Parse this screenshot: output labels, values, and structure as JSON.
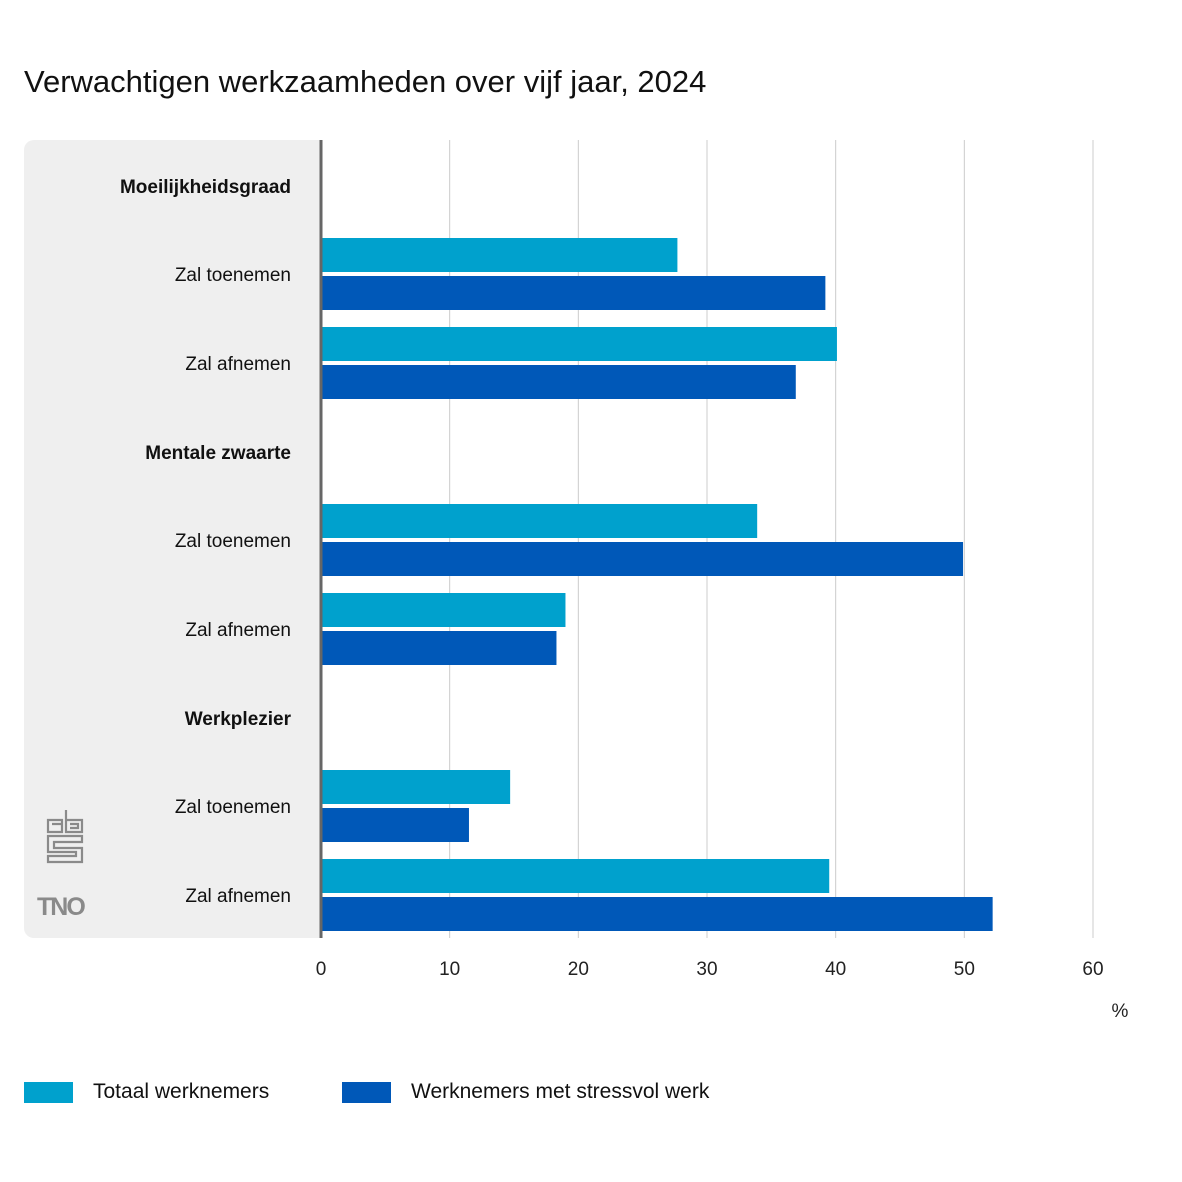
{
  "chart_data": {
    "type": "bar",
    "orientation": "horizontal",
    "title": "Verwachtigen werkzaamheden over vijf jaar, 2024",
    "xlabel": "%",
    "xlim": [
      0,
      60
    ],
    "xticks": [
      "0",
      "10",
      "20",
      "30",
      "40",
      "50",
      "60"
    ],
    "grid": true,
    "legend_position": "bottom-left",
    "groups": [
      {
        "label": "Moeilijkheidsgraad",
        "categories": [
          "Zal toenemen",
          "Zal afnemen"
        ]
      },
      {
        "label": "Mentale zwaarte",
        "categories": [
          "Zal toenemen",
          "Zal afnemen"
        ]
      },
      {
        "label": "Werkplezier",
        "categories": [
          "Zal toenemen",
          "Zal afnemen"
        ]
      }
    ],
    "series": [
      {
        "name": "Totaal werknemers",
        "color": "#00a1cd",
        "values": [
          27.7,
          40.1,
          33.9,
          19.0,
          14.7,
          39.5
        ]
      },
      {
        "name": "Werknemers met stressvol werk",
        "color": "#0058b8",
        "values": [
          39.2,
          36.9,
          49.9,
          18.3,
          11.5,
          52.2
        ]
      }
    ]
  },
  "logos": {
    "cbs": "cbs",
    "tno": "TNO"
  }
}
